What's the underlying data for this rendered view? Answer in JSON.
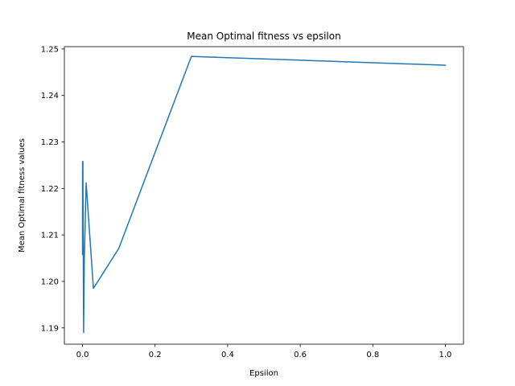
{
  "chart_data": {
    "type": "line",
    "title": "Mean Optimal fitness vs epsilon",
    "xlabel": "Epsilon",
    "ylabel": "Mean Optimal fitness values",
    "xlim": [
      -0.05,
      1.05
    ],
    "ylim": [
      1.1865,
      1.2505
    ],
    "grid": false,
    "legend": "none",
    "x_ticks": [
      0.0,
      0.2,
      0.4,
      0.6,
      0.8,
      1.0
    ],
    "x_tick_labels": [
      "0.0",
      "0.2",
      "0.4",
      "0.6",
      "0.8",
      "1.0"
    ],
    "y_ticks": [
      1.19,
      1.2,
      1.21,
      1.22,
      1.23,
      1.24,
      1.25
    ],
    "y_tick_labels": [
      "1.19",
      "1.20",
      "1.21",
      "1.22",
      "1.23",
      "1.24",
      "1.25"
    ],
    "series": [
      {
        "color": "#1f77b4",
        "x": [
          0.0,
          0.0001,
          0.001,
          0.003,
          0.005,
          0.01,
          0.03,
          0.1,
          0.3,
          1.0
        ],
        "y": [
          1.2058,
          1.2258,
          1.2258,
          1.189,
          1.205,
          1.2212,
          1.1985,
          1.2071,
          1.2484,
          1.2465
        ]
      }
    ]
  }
}
